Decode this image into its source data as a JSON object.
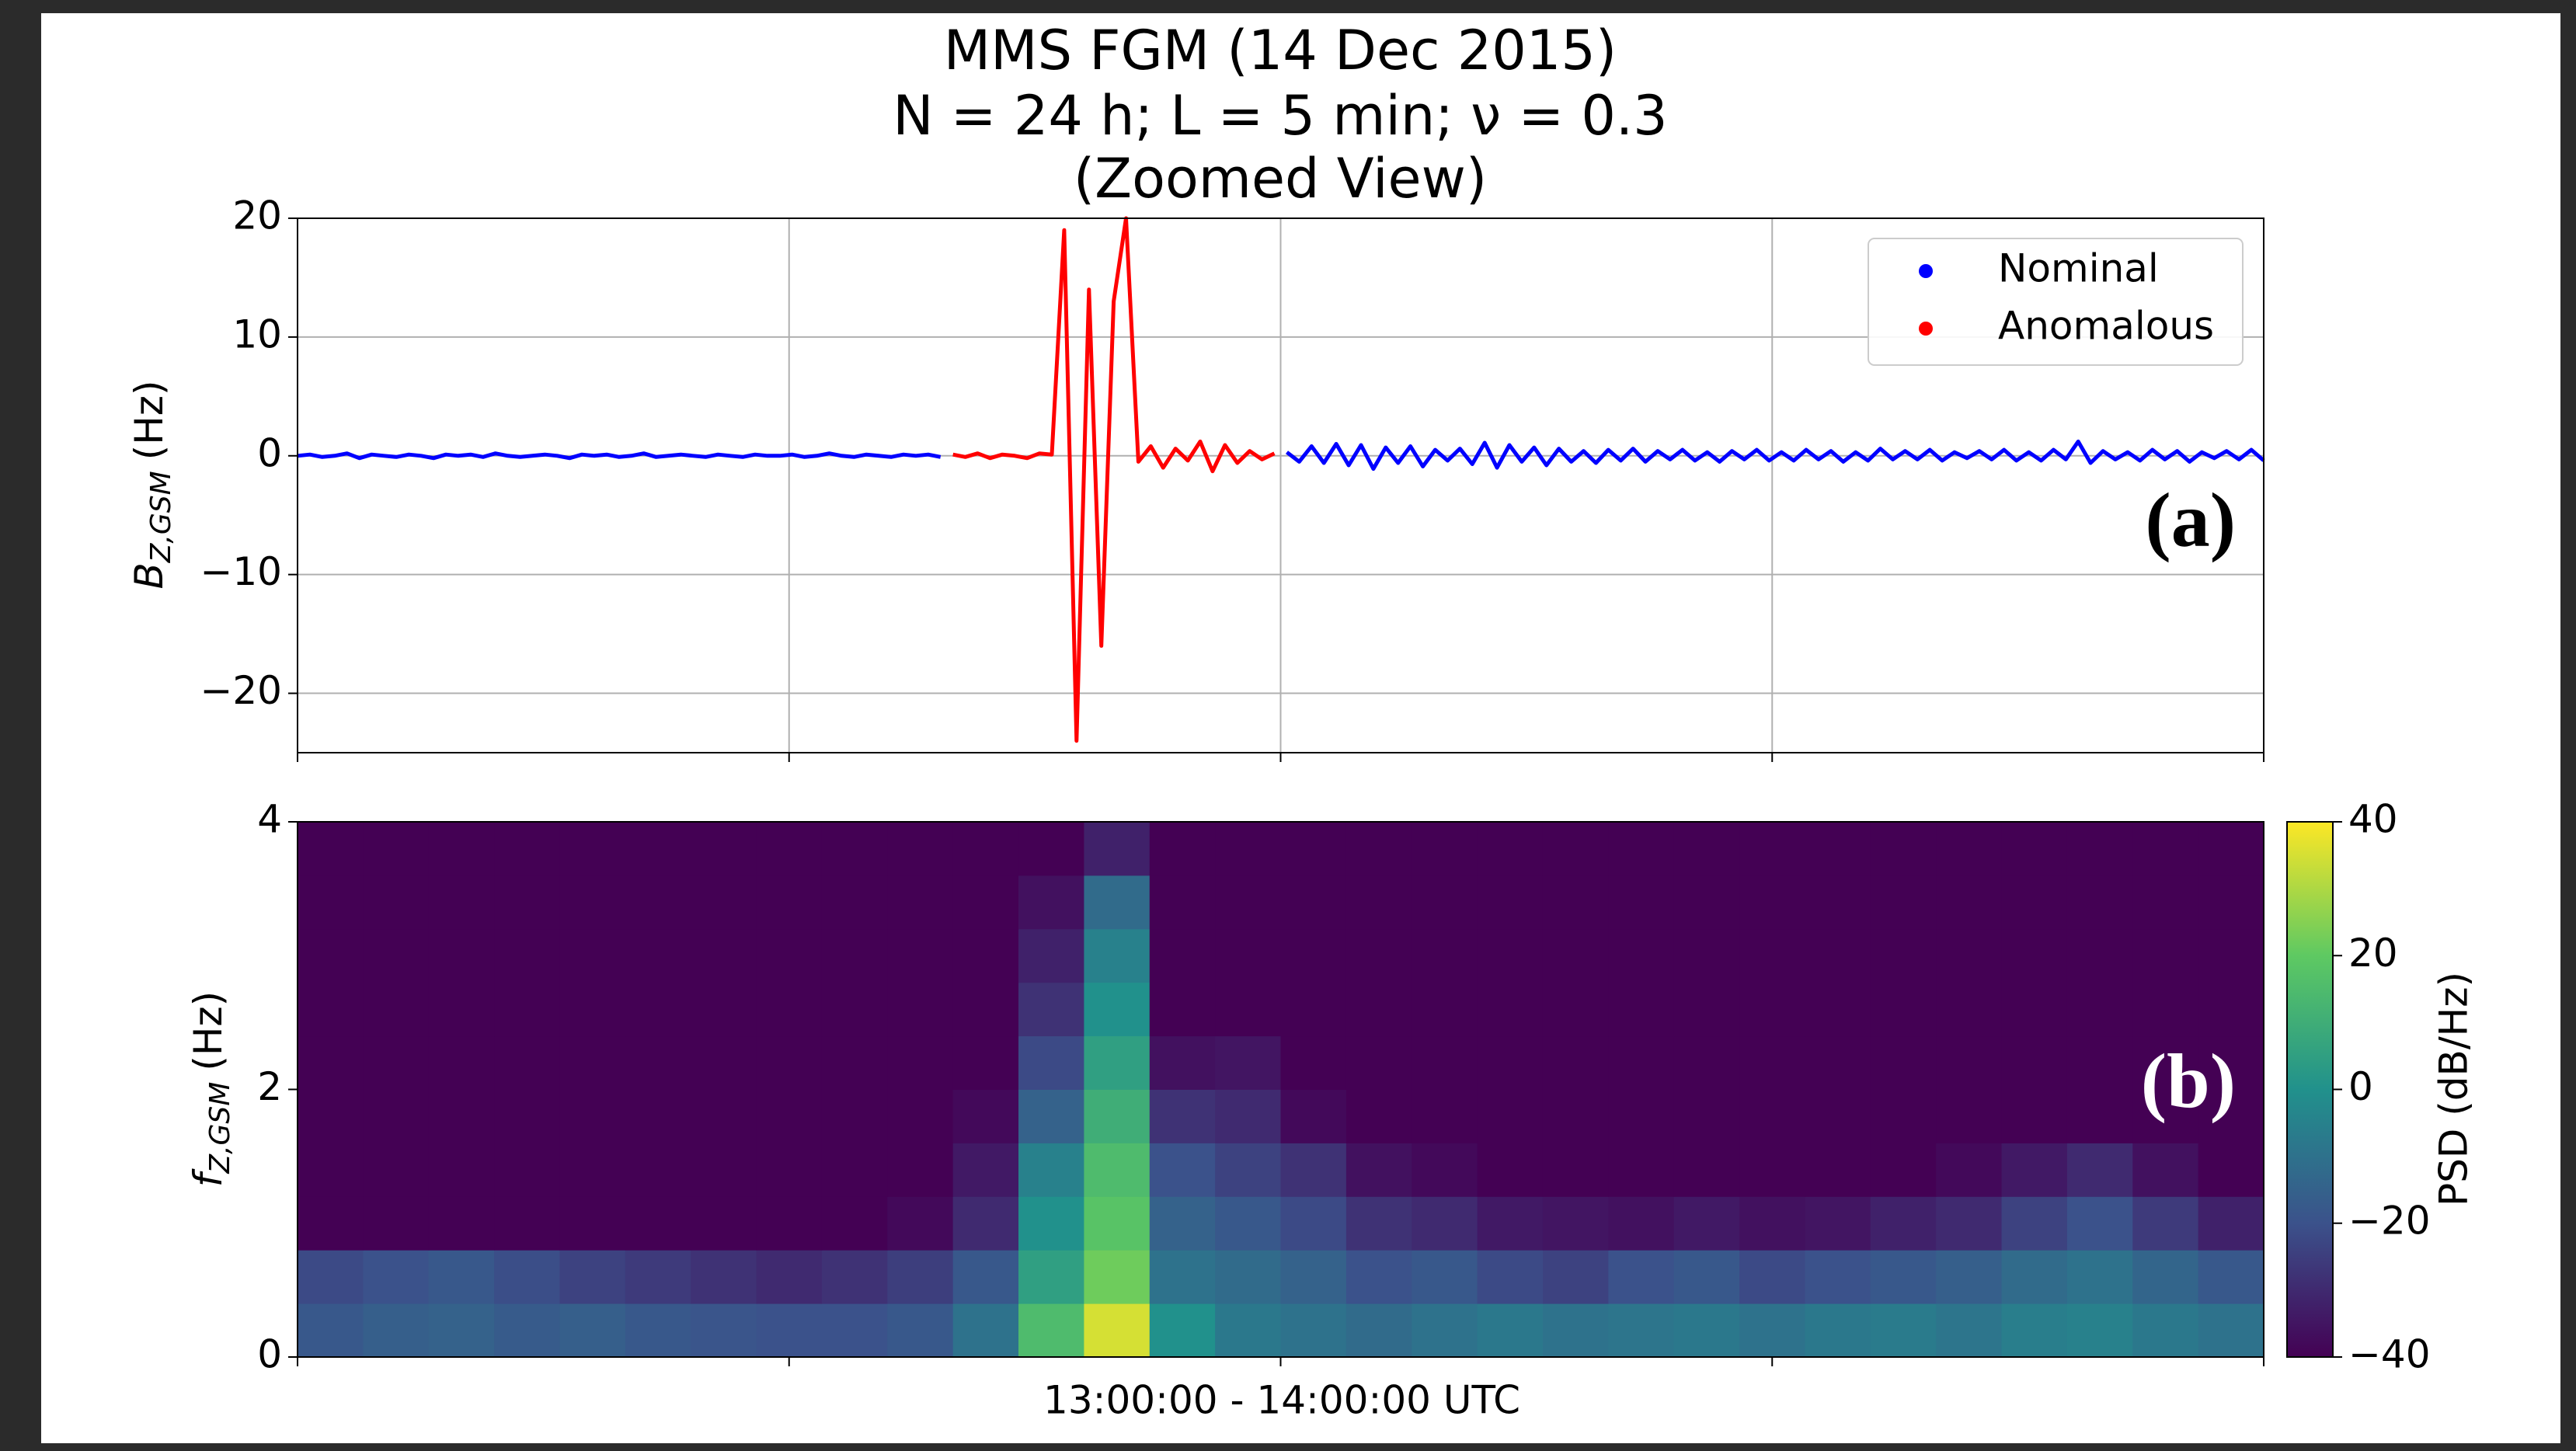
{
  "chart_data": [
    {
      "type": "scatter",
      "title": [
        "MMS FGM (14 Dec 2015)",
        "N = 24 h; L = 5 min; ν = 0.3",
        "(Zoomed View)"
      ],
      "ylabel_symbol": "B",
      "ylabel_subscript": "Z,GSM",
      "ylabel_unit": "(Hz)",
      "panel_label": "(a)",
      "ylim": [
        -25,
        20
      ],
      "yticks": [
        20,
        10,
        0,
        {
          "value": -10,
          "label": "−10"
        },
        {
          "value": -20,
          "label": "−20"
        }
      ],
      "grid": true,
      "legend": "upper right",
      "series": [
        {
          "name": "Nominal",
          "color": "#0000ff",
          "values": [
            0,
            0.1,
            -0.1,
            0,
            0.2,
            -0.2,
            0.1,
            0,
            -0.1,
            0.1,
            0,
            -0.2,
            0.1,
            0,
            0.1,
            -0.1,
            0.2,
            0,
            -0.1,
            0,
            0.1,
            0,
            -0.2,
            0.1,
            0,
            0.1,
            -0.1,
            0,
            0.2,
            -0.1,
            0,
            0.1,
            0,
            -0.1,
            0.1,
            0,
            -0.1,
            0.1,
            0,
            0,
            0.1,
            -0.1,
            0,
            0.2,
            0,
            -0.1,
            0.1,
            0,
            -0.1,
            0.1,
            0,
            0.1,
            -0.1,
            null,
            null,
            null,
            null,
            null,
            null,
            null,
            null,
            null,
            null,
            null,
            null,
            null,
            null,
            null,
            null,
            null,
            null,
            null,
            null,
            null,
            null,
            null,
            null,
            null,
            null,
            null,
            0.3,
            -0.5,
            0.8,
            -0.6,
            1.0,
            -0.8,
            0.9,
            -1.1,
            0.7,
            -0.6,
            0.8,
            -0.9,
            0.5,
            -0.4,
            0.6,
            -0.7,
            1.1,
            -1.0,
            0.9,
            -0.5,
            0.7,
            -0.8,
            0.6,
            -0.5,
            0.4,
            -0.6,
            0.5,
            -0.4,
            0.6,
            -0.5,
            0.4,
            -0.3,
            0.5,
            -0.4,
            0.3,
            -0.5,
            0.4,
            -0.3,
            0.5,
            -0.4,
            0.3,
            -0.4,
            0.5,
            -0.3,
            0.4,
            -0.5,
            0.3,
            -0.4,
            0.6,
            -0.3,
            0.4,
            -0.3,
            0.5,
            -0.4,
            0.3,
            -0.2,
            0.4,
            -0.3,
            0.5,
            -0.4,
            0.3,
            -0.4,
            0.5,
            -0.3,
            1.2,
            -0.6,
            0.4,
            -0.3,
            0.3,
            -0.4,
            0.5,
            -0.3,
            0.4,
            -0.5,
            0.3,
            -0.2,
            0.4,
            -0.3,
            0.5,
            -0.4
          ]
        },
        {
          "name": "Anomalous",
          "color": "#ff0000",
          "values": [
            null,
            null,
            null,
            null,
            null,
            null,
            null,
            null,
            null,
            null,
            null,
            null,
            null,
            null,
            null,
            null,
            null,
            null,
            null,
            null,
            null,
            null,
            null,
            null,
            null,
            null,
            null,
            null,
            null,
            null,
            null,
            null,
            null,
            null,
            null,
            null,
            null,
            null,
            null,
            null,
            null,
            null,
            null,
            null,
            null,
            null,
            null,
            null,
            null,
            null,
            null,
            null,
            null,
            0.1,
            -0.1,
            0.2,
            -0.2,
            0.1,
            0,
            -0.2,
            0.2,
            0.1,
            19,
            -24,
            14,
            -16,
            13,
            20,
            -0.5,
            0.8,
            -1.0,
            0.6,
            -0.4,
            1.2,
            -1.3,
            0.9,
            -0.6,
            0.4,
            -0.3,
            0.2,
            null,
            null,
            null,
            null,
            null,
            null,
            null,
            null,
            null,
            null,
            null,
            null,
            null,
            null,
            null,
            null,
            null,
            null,
            null,
            null,
            null,
            null,
            null,
            null,
            null,
            null,
            null,
            null,
            null,
            null,
            null,
            null,
            null,
            null,
            null,
            null,
            null,
            null,
            null,
            null,
            null,
            null,
            null,
            null,
            null,
            null,
            null,
            null,
            null,
            null,
            null,
            null,
            null,
            null,
            null,
            null,
            null,
            null,
            null,
            null,
            null,
            null,
            null,
            null,
            null,
            null,
            null,
            null,
            null,
            null,
            null,
            null,
            null,
            null,
            null,
            null,
            null,
            null,
            null,
            null
          ]
        }
      ]
    },
    {
      "type": "heatmap",
      "ylabel_symbol": "f",
      "ylabel_subscript": "Z,GSM",
      "ylabel_unit": "(Hz)",
      "xlabel": "13:00:00 - 14:00:00 UTC",
      "panel_label": "(b)",
      "ylim": [
        0,
        4
      ],
      "yticks": [
        0,
        2,
        4
      ],
      "colormap": "viridis",
      "clim": [
        -40,
        40
      ],
      "cticks": [
        {
          "value": -40,
          "label": "−40"
        },
        {
          "value": -20,
          "label": "−20"
        },
        0,
        20,
        40
      ],
      "colorbar_label": "PSD (dB/Hz)",
      "z": [
        [
          -18,
          -16,
          -15,
          -17,
          -16,
          -18,
          -19,
          -20,
          -20,
          -18,
          -10,
          15,
          35,
          0,
          -8,
          -10,
          -12,
          -10,
          -8,
          -10,
          -9,
          -8,
          -10,
          -8,
          -7,
          -9,
          -6,
          -5,
          -8,
          -10
        ],
        [
          -22,
          -20,
          -18,
          -21,
          -24,
          -26,
          -28,
          -30,
          -28,
          -25,
          -18,
          5,
          22,
          -10,
          -12,
          -15,
          -20,
          -18,
          -22,
          -24,
          -20,
          -18,
          -22,
          -20,
          -18,
          -16,
          -12,
          -10,
          -14,
          -18
        ],
        [
          -40,
          -40,
          -40,
          -40,
          -40,
          -40,
          -40,
          -40,
          -40,
          -38,
          -30,
          0,
          18,
          -15,
          -18,
          -22,
          -28,
          -30,
          -34,
          -35,
          -36,
          -34,
          -36,
          -35,
          -32,
          -30,
          -24,
          -20,
          -26,
          -32
        ],
        [
          -40,
          -40,
          -40,
          -40,
          -40,
          -40,
          -40,
          -40,
          -40,
          -40,
          -34,
          -5,
          15,
          -20,
          -24,
          -28,
          -36,
          -38,
          -40,
          -40,
          -40,
          -40,
          -40,
          -40,
          -40,
          -38,
          -34,
          -30,
          -36,
          -40
        ],
        [
          -40,
          -40,
          -40,
          -40,
          -40,
          -40,
          -40,
          -40,
          -40,
          -40,
          -38,
          -15,
          10,
          -28,
          -30,
          -38,
          -40,
          -40,
          -40,
          -40,
          -40,
          -40,
          -40,
          -40,
          -40,
          -40,
          -40,
          -40,
          -40,
          -40
        ],
        [
          -40,
          -40,
          -40,
          -40,
          -40,
          -40,
          -40,
          -40,
          -40,
          -40,
          -40,
          -22,
          5,
          -36,
          -35,
          -40,
          -40,
          -40,
          -40,
          -40,
          -40,
          -40,
          -40,
          -40,
          -40,
          -40,
          -40,
          -40,
          -40,
          -40
        ],
        [
          -40,
          -40,
          -40,
          -40,
          -40,
          -40,
          -40,
          -40,
          -40,
          -40,
          -40,
          -28,
          0,
          -40,
          -40,
          -40,
          -40,
          -40,
          -40,
          -40,
          -40,
          -40,
          -40,
          -40,
          -40,
          -40,
          -40,
          -40,
          -40,
          -40
        ],
        [
          -40,
          -40,
          -40,
          -40,
          -40,
          -40,
          -40,
          -40,
          -40,
          -40,
          -40,
          -32,
          -5,
          -40,
          -40,
          -40,
          -40,
          -40,
          -40,
          -40,
          -40,
          -40,
          -40,
          -40,
          -40,
          -40,
          -40,
          -40,
          -40,
          -40
        ],
        [
          -40,
          -40,
          -40,
          -40,
          -40,
          -40,
          -40,
          -40,
          -40,
          -40,
          -40,
          -36,
          -12,
          -40,
          -40,
          -40,
          -40,
          -40,
          -40,
          -40,
          -40,
          -40,
          -40,
          -40,
          -40,
          -40,
          -40,
          -40,
          -40,
          -40
        ],
        [
          -40,
          -40,
          -40,
          -40,
          -40,
          -40,
          -40,
          -40,
          -40,
          -40,
          -40,
          -40,
          -32,
          -40,
          -40,
          -40,
          -40,
          -40,
          -40,
          -40,
          -40,
          -40,
          -40,
          -40,
          -40,
          -40,
          -40,
          -40,
          -40,
          -40
        ]
      ]
    }
  ]
}
